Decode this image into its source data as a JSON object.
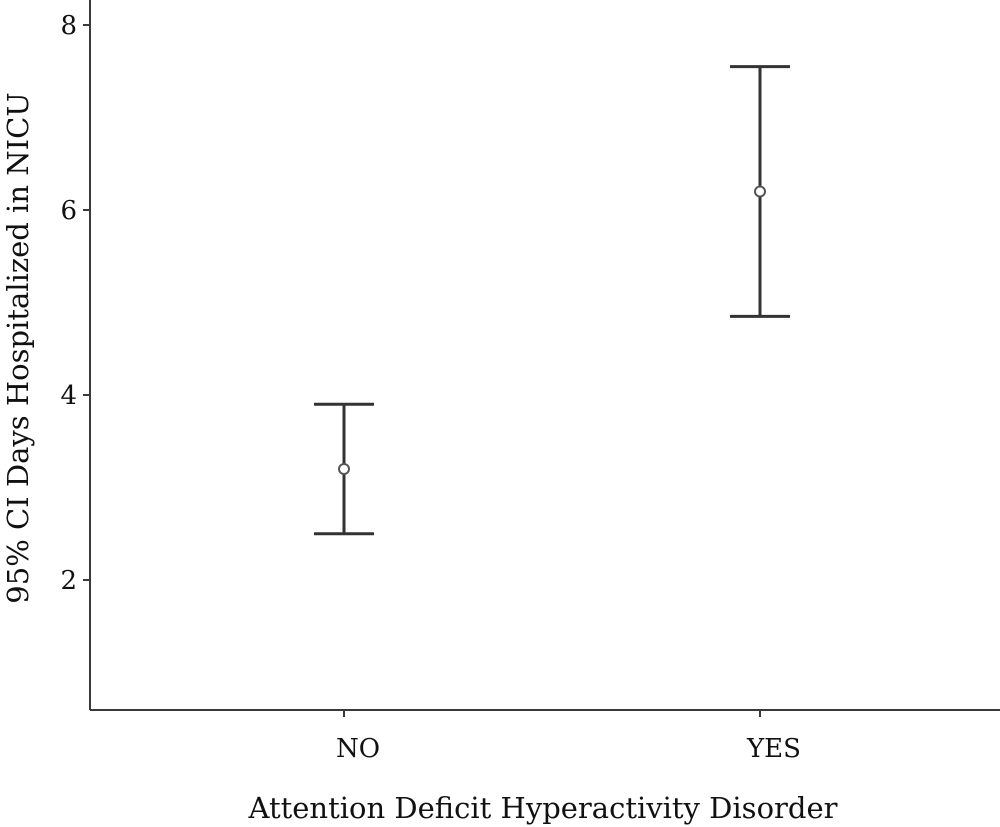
{
  "chart_data": {
    "type": "scatter",
    "subtype": "error-bar",
    "title": "",
    "xlabel": "Attention Deficit Hyperactivity Disorder",
    "ylabel": "95% CI Days Hospitalized in NICU",
    "categories": [
      "NO",
      "YES"
    ],
    "series": [
      {
        "values": [
          3.2,
          6.2
        ],
        "ci_lower": [
          2.5,
          4.85
        ],
        "ci_upper": [
          3.9,
          7.55
        ]
      }
    ],
    "ylim": [
      0.6,
      8.3
    ],
    "yticks": [
      2,
      4,
      6,
      8
    ],
    "grid": false,
    "legend": "none"
  }
}
